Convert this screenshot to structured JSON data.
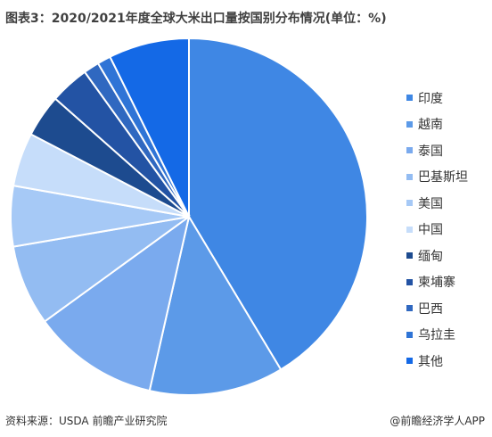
{
  "title": "图表3：2020/2021年度全球大米出口量按国别分布情况(单位：%)",
  "source": "资料来源：USDA 前瞻产业研究院",
  "brand": "@前瞻经济学人APP",
  "chart_data": {
    "type": "pie",
    "categories": [
      "印度",
      "越南",
      "泰国",
      "巴基斯坦",
      "美国",
      "中国",
      "缅甸",
      "柬埔寨",
      "巴西",
      "乌拉圭",
      "其他"
    ],
    "values": [
      40.8,
      12.0,
      11.3,
      7.2,
      5.4,
      4.8,
      3.8,
      3.5,
      1.4,
      1.2,
      7.2
    ],
    "colors": [
      "#3f87e4",
      "#5c9ae8",
      "#7aaaee",
      "#93bcf2",
      "#a6c9f6",
      "#c6ddfa",
      "#1d4b8f",
      "#2353a4",
      "#3068c0",
      "#2f74d6",
      "#1469e6"
    ],
    "legend_position": "right"
  }
}
